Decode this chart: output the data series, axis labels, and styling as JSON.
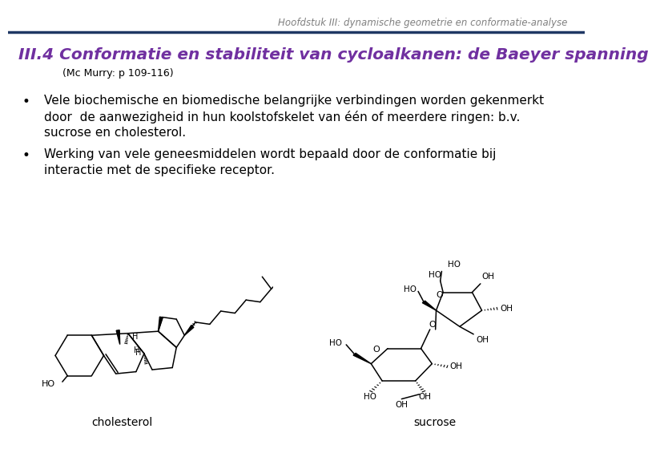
{
  "header_text": "Hoofdstuk III: dynamische geometrie en conformatie-analyse",
  "header_color": "#808080",
  "header_fontsize": 8.5,
  "title_text": "III.4 Conformatie en stabiliteit van cycloalkanen: de Baeyer spanning",
  "title_color": "#7030A0",
  "title_fontsize": 14.5,
  "subtitle_text": "(Mc Murry: p 109-116)",
  "subtitle_color": "#000000",
  "subtitle_fontsize": 9,
  "line_color": "#1F3864",
  "background_color": "#FFFFFF",
  "bullet1_line1": "Vele biochemische en biomedische belangrijke verbindingen worden gekenmerkt",
  "bullet1_line2": "door  de aanwezigheid in hun koolstofskelet van één of meerdere ringen: b.v.",
  "bullet1_line3": "sucrose en cholesterol.",
  "bullet2_line1": "Werking van vele geneesmiddelen wordt bepaald door de conformatie bij",
  "bullet2_line2": "interactie met de specifieke receptor.",
  "bullet_color": "#000000",
  "bullet_fontsize": 11,
  "label_cholesterol": "cholesterol",
  "label_sucrose": "sucrose",
  "label_fontsize": 10
}
